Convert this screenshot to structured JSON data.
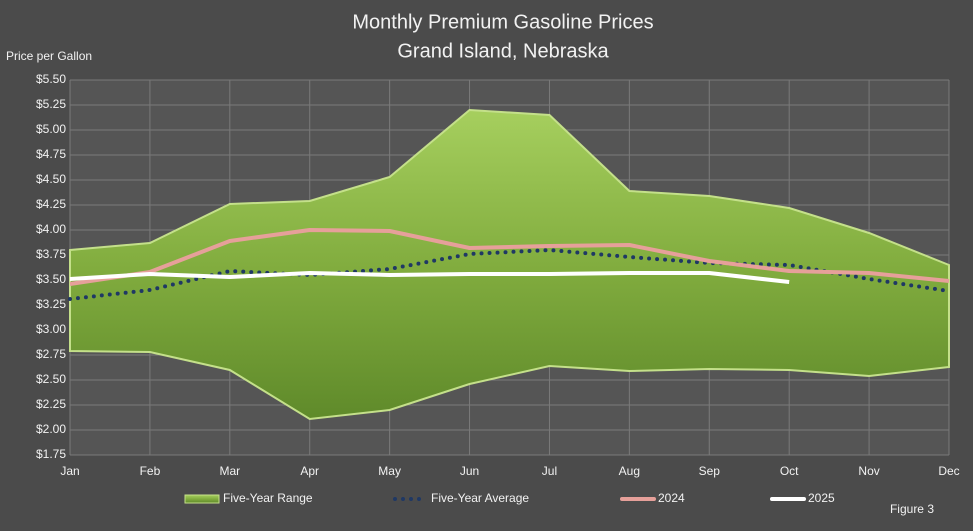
{
  "chart_data": {
    "type": "line",
    "title": "Monthly Premium Gasoline Prices",
    "subtitle": "Grand Island, Nebraska",
    "y_label": "Price per Gallon",
    "annotation": "Figure 3",
    "categories": [
      "Jan",
      "Feb",
      "Mar",
      "Apr",
      "May",
      "Jun",
      "Jul",
      "Aug",
      "Sep",
      "Oct",
      "Nov",
      "Dec"
    ],
    "series": [
      {
        "name": "Five-Year Range",
        "type": "range",
        "color": "#8cb94a",
        "values": [
          3.8,
          3.87,
          4.26,
          4.29,
          4.53,
          5.2,
          5.15,
          4.39,
          4.34,
          4.22,
          3.97,
          3.65
        ],
        "lower": [
          2.79,
          2.78,
          2.6,
          2.11,
          2.2,
          2.46,
          2.64,
          2.59,
          2.61,
          2.6,
          2.54,
          2.63
        ]
      },
      {
        "name": "Five-Year Average",
        "type": "dotted",
        "color": "#1f3864",
        "values": [
          3.31,
          3.4,
          3.59,
          3.55,
          3.61,
          3.76,
          3.8,
          3.73,
          3.67,
          3.65,
          3.51,
          3.39
        ]
      },
      {
        "name": "2024",
        "type": "line",
        "color": "#e6a09a",
        "values": [
          3.46,
          3.58,
          3.89,
          4.0,
          3.99,
          3.82,
          3.84,
          3.85,
          3.69,
          3.59,
          3.57,
          3.49
        ]
      },
      {
        "name": "2025",
        "type": "line",
        "color": "#ffffff",
        "values": [
          3.51,
          3.56,
          3.53,
          3.57,
          3.55,
          3.56,
          3.56,
          3.57,
          3.57,
          3.48,
          null,
          null
        ]
      }
    ],
    "ylim": [
      1.75,
      5.5
    ],
    "yticks": [
      {
        "value": 1.75,
        "label": "$1.75"
      },
      {
        "value": 2.0,
        "label": "$2.00"
      },
      {
        "value": 2.25,
        "label": "$2.25"
      },
      {
        "value": 2.5,
        "label": "$2.50"
      },
      {
        "value": 2.75,
        "label": "$2.75"
      },
      {
        "value": 3.0,
        "label": "$3.00"
      },
      {
        "value": 3.25,
        "label": "$3.25"
      },
      {
        "value": 3.5,
        "label": "$3.50"
      },
      {
        "value": 3.75,
        "label": "$3.75"
      },
      {
        "value": 4.0,
        "label": "$4.00"
      },
      {
        "value": 4.25,
        "label": "$4.25"
      },
      {
        "value": 4.5,
        "label": "$4.50"
      },
      {
        "value": 4.75,
        "label": "$4.75"
      },
      {
        "value": 5.0,
        "label": "$5.00"
      },
      {
        "value": 5.25,
        "label": "$5.25"
      },
      {
        "value": 5.5,
        "label": "$5.50"
      }
    ],
    "grid": true,
    "legend": "bottom"
  }
}
